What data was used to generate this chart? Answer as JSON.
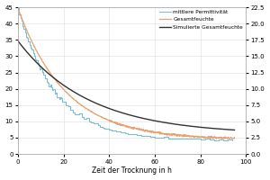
{
  "xlabel": "Zeit der Trocknung in h",
  "xlim": [
    0,
    100
  ],
  "ylim_left": [
    0,
    45
  ],
  "ylim_right": [
    0.0,
    22.5
  ],
  "yticks_left": [
    0,
    5,
    10,
    15,
    20,
    25,
    30,
    35,
    40,
    45
  ],
  "yticks_right": [
    0.0,
    2.5,
    5.0,
    7.5,
    10.0,
    12.5,
    15.0,
    17.5,
    20.0,
    22.5
  ],
  "xticks": [
    0,
    20,
    40,
    60,
    80,
    100
  ],
  "legend": [
    {
      "label": "mittlere Permittivität",
      "color": "#7BBFD6"
    },
    {
      "label": "Gesamtfeuchte",
      "color": "#E8A272"
    },
    {
      "label": "Simulierte Gesamtfeuchte",
      "color": "#333333"
    }
  ],
  "bg_color": "#ffffff",
  "grid_color": "#dedede",
  "perm_start": 40.0,
  "perm_floor": 4.2,
  "perm_decay": 0.062,
  "gesamt_start": 22.3,
  "gesamt_floor": 2.2,
  "gesamt_decay": 0.048,
  "sim_start": 17.3,
  "sim_floor": 3.0,
  "sim_decay": 0.032
}
